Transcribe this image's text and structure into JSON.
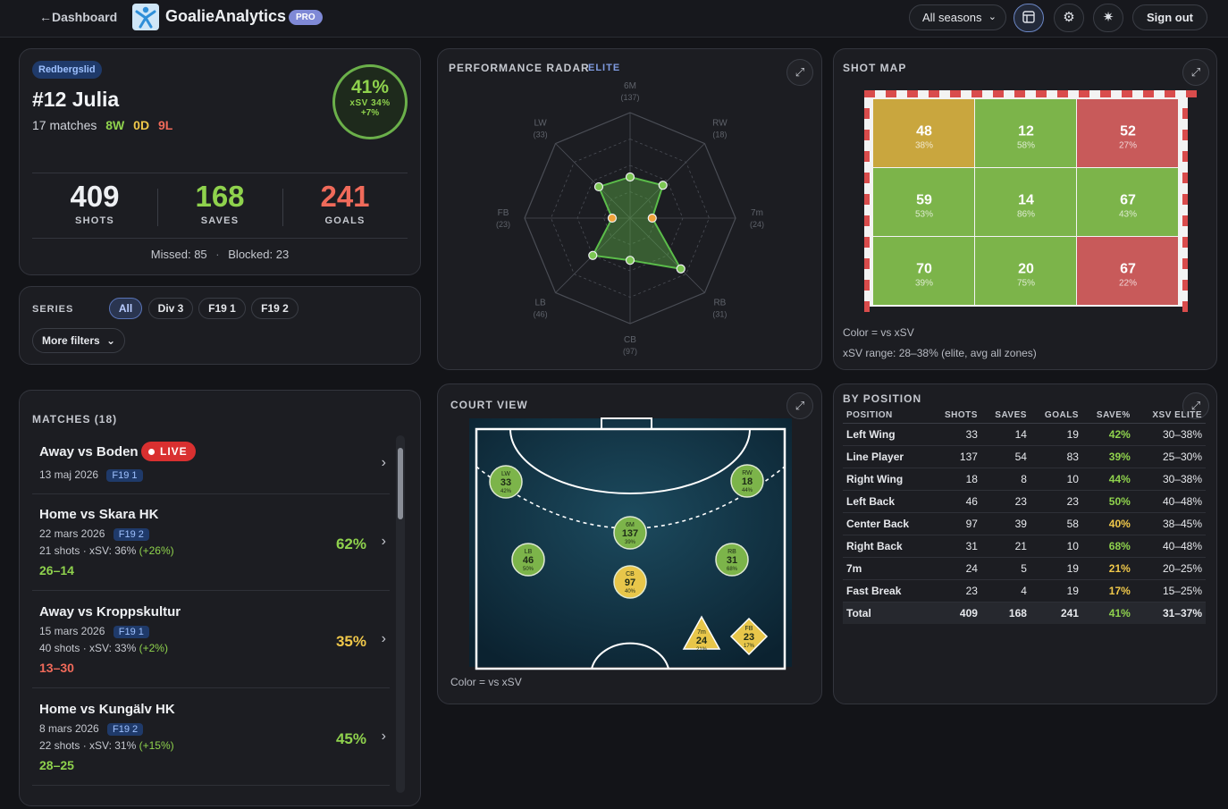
{
  "topbar": {
    "back_label": "←Dashboard",
    "brand": "GoalieAnalytics",
    "badge": "PRO",
    "season_select": "All seasons",
    "signout_label": "Sign out"
  },
  "player": {
    "team": "Redbergslid",
    "name": "#12 Julia",
    "matches": "17 matches",
    "wins": "8W",
    "draws": "0D",
    "losses": "9L",
    "save_pct": "41%",
    "xsv": "xSV 34%",
    "diff": "+7%",
    "shots": "409",
    "shots_label": "SHOTS",
    "saves": "168",
    "saves_label": "SAVES",
    "goals": "241",
    "goals_label": "GOALS",
    "missed": "Missed: 85",
    "blocked": "Blocked: 23",
    "sep": "·"
  },
  "series": {
    "label": "SERIES",
    "chips": [
      "All",
      "Div 3",
      "F19 1",
      "F19 2"
    ],
    "more_filters": "More filters"
  },
  "matches": {
    "title": "MATCHES (18)",
    "live_label": "LIVE",
    "items": [
      {
        "title": "Away vs Boden",
        "date": "13 maj 2026",
        "tag": "F19 1"
      },
      {
        "title": "Home vs Skara HK",
        "date": "22 mars 2026",
        "tag": "F19 2",
        "stats": "21 shots · xSV: 36% ",
        "delta": "(+26%)",
        "score": "26–14",
        "pct": "62%"
      },
      {
        "title": "Away vs Kroppskultur",
        "date": "15 mars 2026",
        "tag": "F19 1",
        "stats": "40 shots · xSV: 33% ",
        "delta": "(+2%)",
        "score": "13–30",
        "pct": "35%"
      },
      {
        "title": "Home vs Kungälv HK",
        "date": "8 mars 2026",
        "tag": "F19 2",
        "stats": "22 shots · xSV: 31% ",
        "delta": "(+15%)",
        "score": "28–25",
        "pct": "45%"
      }
    ]
  },
  "radar": {
    "title": "PERFORMANCE RADAR",
    "badge": "ELITE",
    "axes": [
      {
        "label": "6M",
        "count": "(137)",
        "value": 0.39
      },
      {
        "label": "RW",
        "count": "(18)",
        "value": 0.44
      },
      {
        "label": "7m",
        "count": "(24)",
        "value": 0.21
      },
      {
        "label": "RB",
        "count": "(31)",
        "value": 0.68
      },
      {
        "label": "CB",
        "count": "(97)",
        "value": 0.4
      },
      {
        "label": "LB",
        "count": "(46)",
        "value": 0.5
      },
      {
        "label": "FB",
        "count": "(23)",
        "value": 0.17
      },
      {
        "label": "LW",
        "count": "(33)",
        "value": 0.42
      }
    ]
  },
  "shotmap": {
    "title": "SHOT MAP",
    "zones": [
      {
        "n": "48",
        "p": "38%",
        "color": "#c9a63e"
      },
      {
        "n": "12",
        "p": "58%",
        "color": "#7cb44a"
      },
      {
        "n": "52",
        "p": "27%",
        "color": "#c85a5a"
      },
      {
        "n": "59",
        "p": "53%",
        "color": "#7cb44a"
      },
      {
        "n": "14",
        "p": "86%",
        "color": "#7cb44a"
      },
      {
        "n": "67",
        "p": "43%",
        "color": "#7cb44a"
      },
      {
        "n": "70",
        "p": "39%",
        "color": "#7cb44a"
      },
      {
        "n": "20",
        "p": "75%",
        "color": "#7cb44a"
      },
      {
        "n": "67",
        "p": "22%",
        "color": "#c85a5a"
      }
    ],
    "note1": "Color = vs xSV",
    "note2": "xSV range: 28–38% (elite, avg all zones)"
  },
  "court": {
    "title": "COURT VIEW",
    "note": "Color = vs xSV",
    "markers": [
      {
        "label": "LW",
        "n": "33",
        "p": "42%",
        "color": "#7cb44a",
        "shape": "circle"
      },
      {
        "label": "RW",
        "n": "18",
        "p": "44%",
        "color": "#7cb44a",
        "shape": "circle"
      },
      {
        "label": "6M",
        "n": "137",
        "p": "39%",
        "color": "#7cb44a",
        "shape": "circle"
      },
      {
        "label": "LB",
        "n": "46",
        "p": "50%",
        "color": "#7cb44a",
        "shape": "circle"
      },
      {
        "label": "RB",
        "n": "31",
        "p": "68%",
        "color": "#7cb44a",
        "shape": "circle"
      },
      {
        "label": "CB",
        "n": "97",
        "p": "40%",
        "color": "#e8c64a",
        "shape": "circle"
      },
      {
        "label": "7m",
        "n": "24",
        "p": "21%",
        "color": "#e8c64a",
        "shape": "triangle"
      },
      {
        "label": "FB",
        "n": "23",
        "p": "17%",
        "color": "#e8c64a",
        "shape": "diamond"
      }
    ]
  },
  "byposition": {
    "title": "BY POSITION",
    "headers": [
      "POSITION",
      "SHOTS",
      "SAVES",
      "GOALS",
      "SAVE%",
      "XSV ELITE"
    ],
    "rows": [
      [
        "Left Wing",
        "33",
        "14",
        "19",
        "42%",
        "30–38%"
      ],
      [
        "Line Player",
        "137",
        "54",
        "83",
        "39%",
        "25–30%"
      ],
      [
        "Right Wing",
        "18",
        "8",
        "10",
        "44%",
        "30–38%"
      ],
      [
        "Left Back",
        "46",
        "23",
        "23",
        "50%",
        "40–48%"
      ],
      [
        "Center Back",
        "97",
        "39",
        "58",
        "40%",
        "38–45%"
      ],
      [
        "Right Back",
        "31",
        "21",
        "10",
        "68%",
        "40–48%"
      ],
      [
        "7m",
        "24",
        "5",
        "19",
        "21%",
        "20–25%"
      ],
      [
        "Fast Break",
        "23",
        "4",
        "19",
        "17%",
        "15–25%"
      ],
      [
        "Total",
        "409",
        "168",
        "241",
        "41%",
        "31–37%"
      ]
    ],
    "pct_colors": [
      "#8fd24d",
      "#8fd24d",
      "#8fd24d",
      "#8fd24d",
      "#f0c84a",
      "#8fd24d",
      "#f0c84a",
      "#f0c84a",
      "#8fd24d"
    ]
  },
  "colors": {
    "green": "#8fd24d",
    "yellow": "#f0c84a",
    "red": "#f06a5a",
    "accent": "#5974b8"
  }
}
